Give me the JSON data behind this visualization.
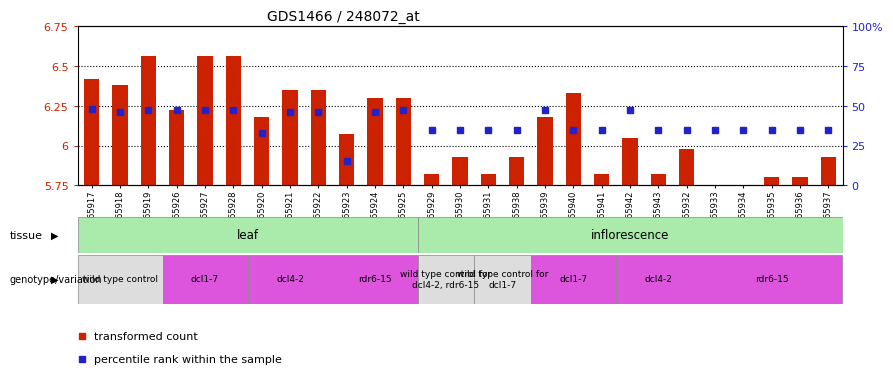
{
  "title": "GDS1466 / 248072_at",
  "samples": [
    "GSM65917",
    "GSM65918",
    "GSM65919",
    "GSM65926",
    "GSM65927",
    "GSM65928",
    "GSM65920",
    "GSM65921",
    "GSM65922",
    "GSM65923",
    "GSM65924",
    "GSM65925",
    "GSM65929",
    "GSM65930",
    "GSM65931",
    "GSM65938",
    "GSM65939",
    "GSM65940",
    "GSM65941",
    "GSM65942",
    "GSM65943",
    "GSM65932",
    "GSM65933",
    "GSM65934",
    "GSM65935",
    "GSM65936",
    "GSM65937"
  ],
  "transformed_count": [
    6.42,
    6.38,
    6.56,
    6.22,
    6.56,
    6.56,
    6.18,
    6.35,
    6.35,
    6.07,
    6.3,
    6.3,
    5.82,
    5.93,
    5.82,
    5.93,
    6.18,
    6.33,
    5.82,
    6.05,
    5.82,
    5.98,
    5.75,
    5.75,
    5.8,
    5.8,
    5.93
  ],
  "percentile_rank": [
    48,
    46,
    47,
    47,
    47,
    47,
    33,
    46,
    46,
    15,
    46,
    47,
    35,
    35,
    35,
    35,
    47,
    35,
    35,
    47,
    35,
    35,
    35,
    35,
    35,
    35,
    35
  ],
  "ymin": 5.75,
  "ymax": 6.75,
  "yticks_left": [
    5.75,
    6.0,
    6.25,
    6.5,
    6.75
  ],
  "ytick_labels_left": [
    "5.75",
    "6",
    "6.25",
    "6.5",
    "6.75"
  ],
  "yticks_right": [
    0,
    25,
    50,
    75,
    100
  ],
  "ytick_labels_right": [
    "0",
    "25",
    "50",
    "75",
    "100%"
  ],
  "bar_color": "#cc2200",
  "dot_color": "#2222cc",
  "grid_lines": [
    6.0,
    6.25,
    6.5
  ],
  "bar_width": 0.55,
  "tissue_groups": [
    {
      "label": "leaf",
      "start": 0,
      "end": 12,
      "color": "#aaeaaa"
    },
    {
      "label": "inflorescence",
      "start": 12,
      "end": 27,
      "color": "#aaeaaa"
    }
  ],
  "genotype_groups": [
    {
      "label": "wild type control",
      "start": 0,
      "end": 3,
      "color": "#dddddd"
    },
    {
      "label": "dcl1-7",
      "start": 3,
      "end": 6,
      "color": "#dd55dd"
    },
    {
      "label": "dcl4-2",
      "start": 6,
      "end": 9,
      "color": "#dd55dd"
    },
    {
      "label": "rdr6-15",
      "start": 9,
      "end": 12,
      "color": "#dd55dd"
    },
    {
      "label": "wild type control for\ndcl4-2, rdr6-15",
      "start": 12,
      "end": 14,
      "color": "#dddddd"
    },
    {
      "label": "wild type control for\ndcl1-7",
      "start": 14,
      "end": 16,
      "color": "#dddddd"
    },
    {
      "label": "dcl1-7",
      "start": 16,
      "end": 19,
      "color": "#dd55dd"
    },
    {
      "label": "dcl4-2",
      "start": 19,
      "end": 22,
      "color": "#dd55dd"
    },
    {
      "label": "rdr6-15",
      "start": 22,
      "end": 27,
      "color": "#dd55dd"
    }
  ]
}
